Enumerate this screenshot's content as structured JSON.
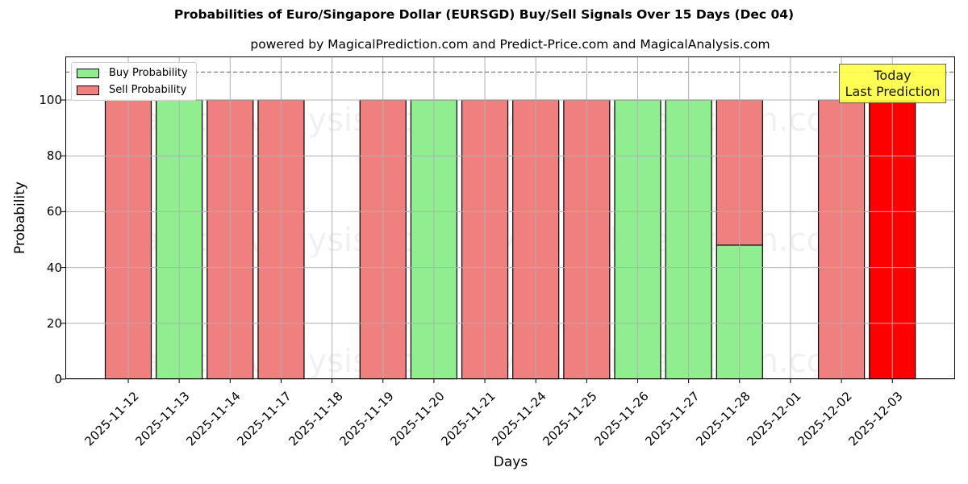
{
  "chart_data": {
    "type": "bar",
    "stacked": true,
    "title": "Probabilities of Euro/Singapore Dollar (EURSGD) Buy/Sell Signals Over 15 Days (Dec 04)",
    "subtitle": "powered by MagicalPrediction.com and Predict-Price.com and MagicalAnalysis.com",
    "xlabel": "Days",
    "ylabel": "Probability",
    "ylim": [
      0,
      115
    ],
    "yticks": [
      0,
      20,
      40,
      60,
      80,
      100
    ],
    "grid": true,
    "legend_position": "upper left",
    "categories": [
      "2025-11-12",
      "2025-11-13",
      "2025-11-14",
      "2025-11-17",
      "2025-11-18",
      "2025-11-19",
      "2025-11-20",
      "2025-11-21",
      "2025-11-24",
      "2025-11-25",
      "2025-11-26",
      "2025-11-27",
      "2025-11-28",
      "2025-12-01",
      "2025-12-02",
      "2025-12-03"
    ],
    "series": [
      {
        "name": "Buy Probability",
        "color": "#90ee90",
        "values": [
          0,
          100,
          0,
          0,
          0,
          0,
          100,
          0,
          0,
          0,
          100,
          100,
          48,
          0,
          0,
          0
        ]
      },
      {
        "name": "Sell Probability",
        "color": "#f08080",
        "values": [
          100,
          0,
          100,
          100,
          0,
          100,
          0,
          100,
          100,
          100,
          0,
          0,
          52,
          0,
          100,
          100
        ]
      }
    ],
    "highlight": {
      "category": "2025-12-03",
      "color": "#ff0000",
      "label": "Today\nLast Prediction"
    },
    "reference_line": {
      "y": 110,
      "style": "dashed",
      "color": "#808080"
    },
    "watermarks": [
      "MagicalAnalysis.com",
      "MagicalPrediction.com"
    ]
  },
  "legend": {
    "buy_label": "Buy Probability",
    "sell_label": "Sell Probability"
  },
  "annotation": {
    "line1": "Today",
    "line2": "Last Prediction"
  }
}
